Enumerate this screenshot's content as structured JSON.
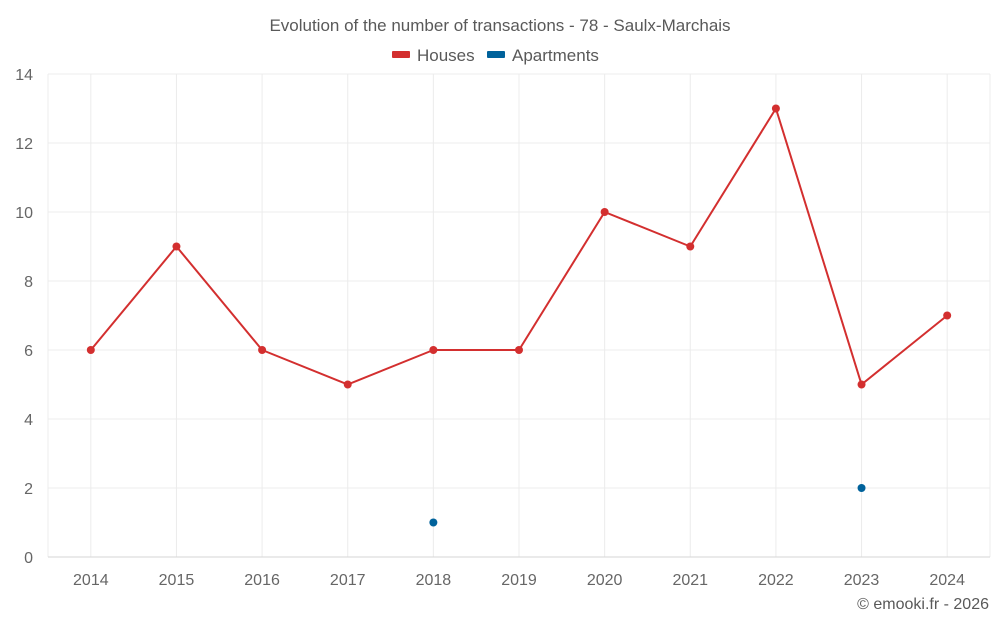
{
  "chart_data": {
    "type": "line",
    "title": "Evolution of the number of transactions - 78 - Saulx-Marchais",
    "categories": [
      "2014",
      "2015",
      "2016",
      "2017",
      "2018",
      "2019",
      "2020",
      "2021",
      "2022",
      "2023",
      "2024"
    ],
    "series": [
      {
        "name": "Houses",
        "color": "#d32f2f",
        "values": [
          6,
          9,
          6,
          5,
          6,
          6,
          10,
          9,
          13,
          5,
          7
        ]
      },
      {
        "name": "Apartments",
        "color": "#00629b",
        "values": [
          null,
          null,
          null,
          null,
          1,
          null,
          null,
          null,
          null,
          2,
          null
        ]
      }
    ],
    "ylim": [
      0,
      14
    ],
    "yticks": [
      0,
      2,
      4,
      6,
      8,
      10,
      12,
      14
    ],
    "xlabel": "",
    "ylabel": "",
    "grid": true,
    "legend": "top-center"
  },
  "credit": "© emooki.fr - 2026"
}
